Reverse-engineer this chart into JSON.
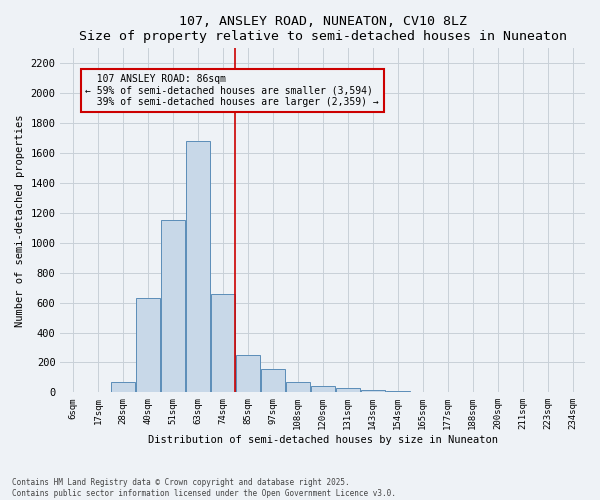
{
  "title": "107, ANSLEY ROAD, NUNEATON, CV10 8LZ",
  "subtitle": "Size of property relative to semi-detached houses in Nuneaton",
  "xlabel": "Distribution of semi-detached houses by size in Nuneaton",
  "ylabel": "Number of semi-detached properties",
  "bin_labels": [
    "6sqm",
    "17sqm",
    "28sqm",
    "40sqm",
    "51sqm",
    "63sqm",
    "74sqm",
    "85sqm",
    "97sqm",
    "108sqm",
    "120sqm",
    "131sqm",
    "143sqm",
    "154sqm",
    "165sqm",
    "177sqm",
    "188sqm",
    "200sqm",
    "211sqm",
    "223sqm",
    "234sqm"
  ],
  "bar_heights": [
    5,
    0,
    70,
    630,
    1150,
    1680,
    660,
    250,
    155,
    70,
    45,
    30,
    15,
    10,
    5,
    3,
    0,
    0,
    0,
    0,
    0
  ],
  "bar_color": "#c8d8e8",
  "bar_edge_color": "#5b8db8",
  "property_label": "107 ANSLEY ROAD: 86sqm",
  "pct_smaller": 59,
  "pct_larger": 39,
  "n_smaller": 3594,
  "n_larger": 2359,
  "vline_color": "#cc0000",
  "ylim": [
    0,
    2300
  ],
  "yticks": [
    0,
    200,
    400,
    600,
    800,
    1000,
    1200,
    1400,
    1600,
    1800,
    2000,
    2200
  ],
  "grid_color": "#c8d0d8",
  "bg_color": "#eef2f6",
  "footnote1": "Contains HM Land Registry data © Crown copyright and database right 2025.",
  "footnote2": "Contains public sector information licensed under the Open Government Licence v3.0.",
  "vline_bin_index": 7
}
